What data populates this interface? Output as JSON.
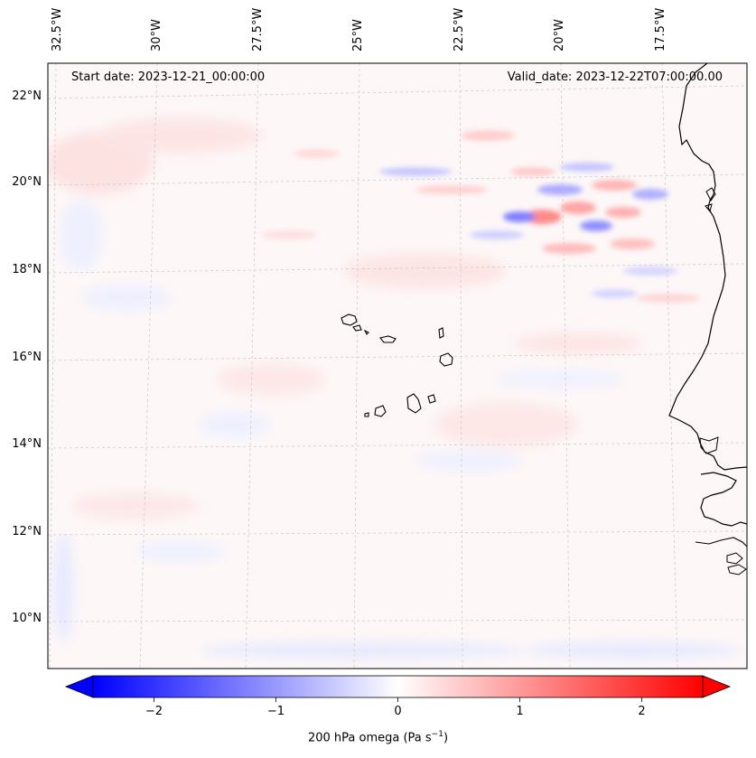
{
  "map": {
    "start_date": "Start date: 2023-12-21_00:00:00",
    "valid_date": "Valid_date: 2023-12-22T07:00:00.00",
    "lon_labels": [
      "32.5°W",
      "30°W",
      "27.5°W",
      "25°W",
      "22.5°W",
      "20°W",
      "17.5°W"
    ],
    "lat_labels": [
      "22°N",
      "20°N",
      "18°N",
      "16°N",
      "14°N",
      "12°N",
      "10°N"
    ]
  },
  "colorbar": {
    "label": "200 hPa omega (Pa s",
    "label_sup": "−1",
    "label_end": ")",
    "ticks": [
      "−2",
      "−1",
      "0",
      "1",
      "2"
    ],
    "tick_values": [
      -2,
      -1,
      0,
      1,
      2
    ],
    "range": [
      -2.5,
      2.5
    ],
    "colors": {
      "neg": "#0000ff",
      "zero": "#ffffff",
      "pos": "#ff0000"
    }
  }
}
